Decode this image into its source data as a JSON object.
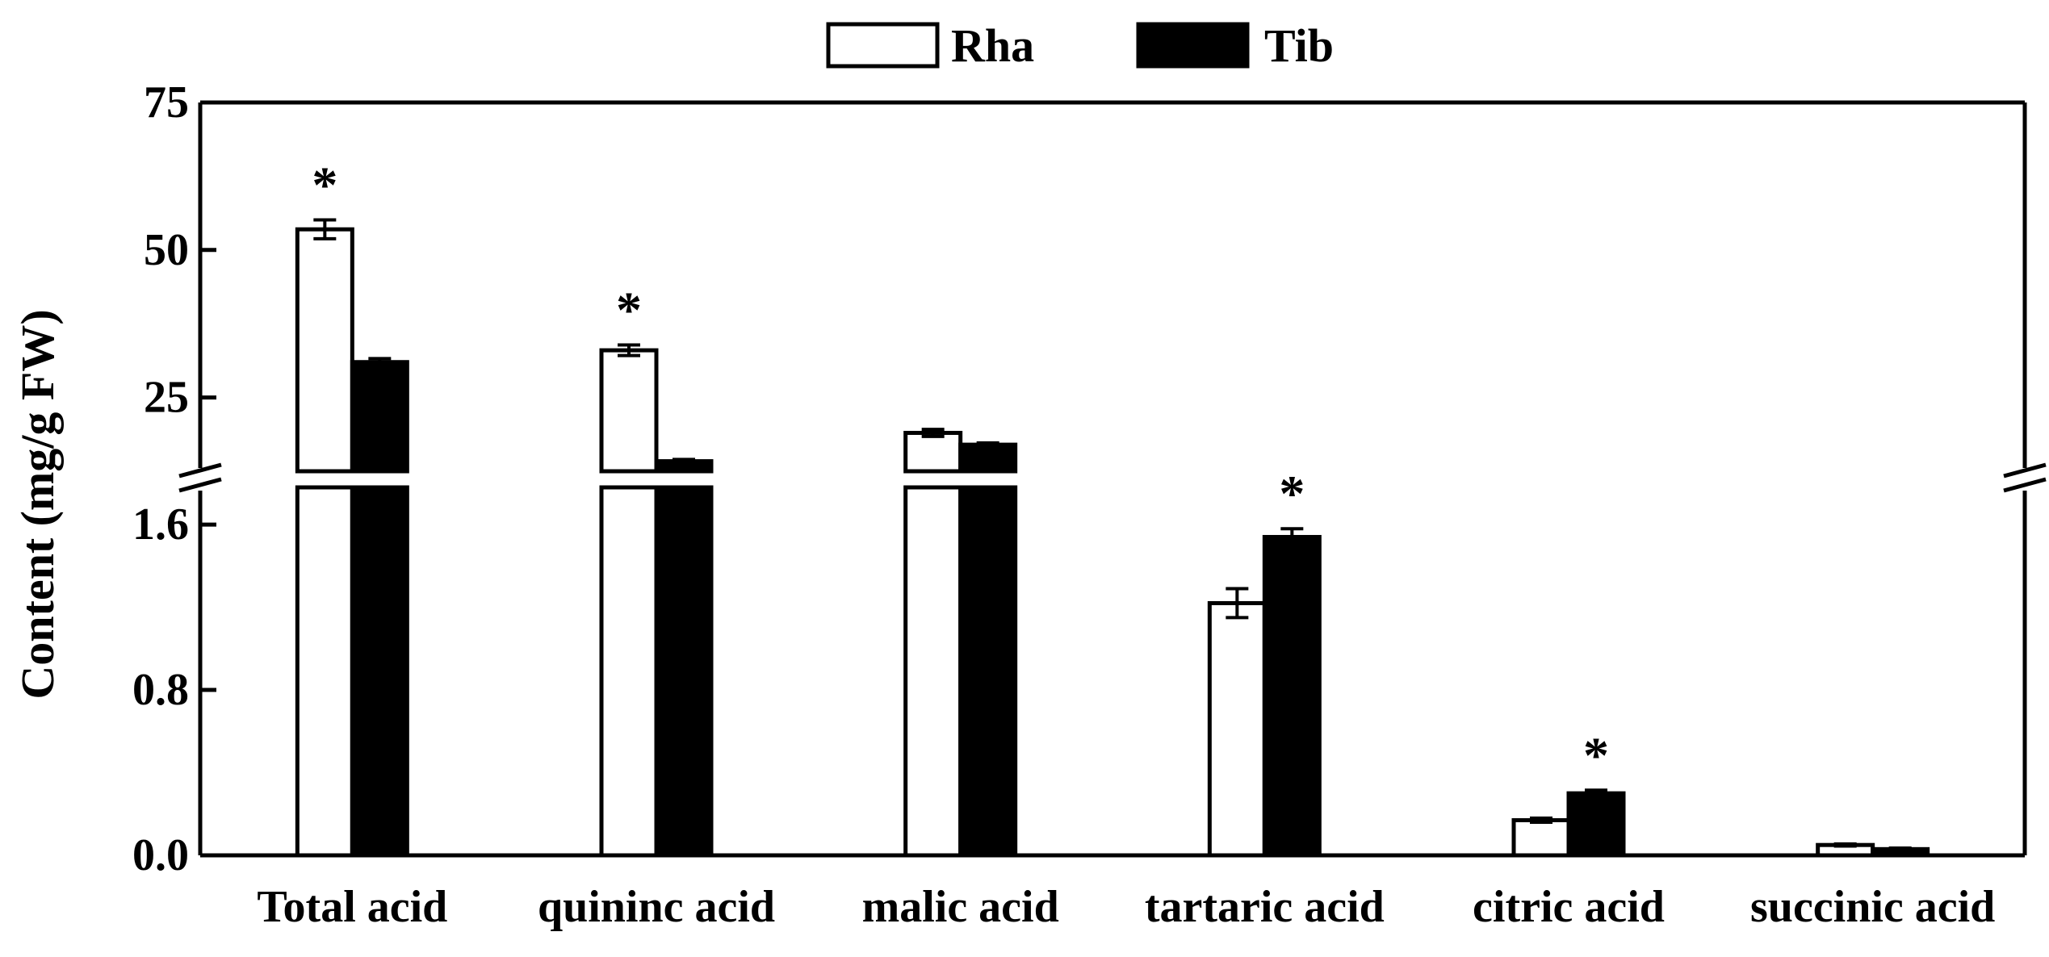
{
  "chart_data": {
    "type": "bar",
    "title": "",
    "xlabel": "",
    "ylabel": "Content (mg/g FW)",
    "axis_break": true,
    "upper_ylim": [
      12.5,
      75
    ],
    "upper_ticks": [
      "75",
      "50",
      "25"
    ],
    "upper_tick_values": [
      75,
      50,
      25
    ],
    "lower_ylim": [
      0,
      1.78
    ],
    "lower_ticks": [
      "1.6",
      "0.8",
      "0.0"
    ],
    "lower_tick_values": [
      1.6,
      0.8,
      0.0
    ],
    "categories": [
      "Total acid",
      "quininc acid",
      "malic acid",
      "tartaric acid",
      "citric acid",
      "succinic acid"
    ],
    "series": [
      {
        "name": "Rha",
        "color": "#ffffff",
        "values": [
          53.5,
          33.0,
          19.0,
          1.22,
          0.17,
          0.05
        ],
        "errors": [
          1.6,
          0.9,
          0.6,
          0.07,
          0.01,
          0.005
        ]
      },
      {
        "name": "Tib",
        "color": "#000000",
        "values": [
          31.0,
          14.2,
          17.0,
          1.54,
          0.3,
          0.03
        ],
        "errors": [
          0.6,
          0.3,
          0.3,
          0.04,
          0.015,
          0.005
        ]
      }
    ],
    "significance": [
      {
        "category_index": 0,
        "series_index": 0,
        "text": "*"
      },
      {
        "category_index": 1,
        "series_index": 0,
        "text": "*"
      },
      {
        "category_index": 3,
        "series_index": 1,
        "text": "*"
      },
      {
        "category_index": 4,
        "series_index": 1,
        "text": "*"
      }
    ],
    "grid": false,
    "legend_position": "top-center"
  }
}
